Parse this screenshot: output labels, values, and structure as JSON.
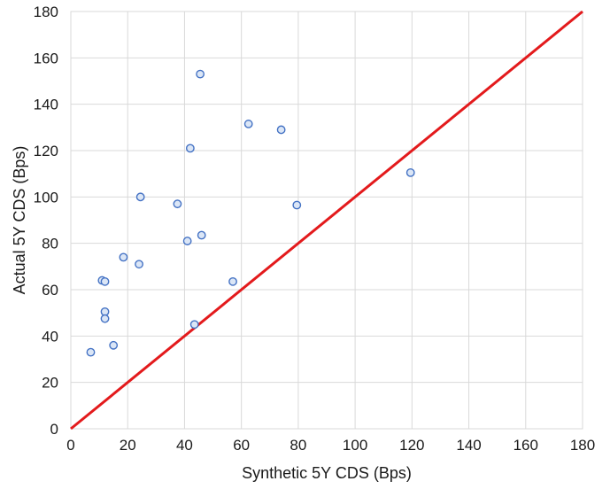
{
  "chart_data": {
    "type": "scatter",
    "title": "",
    "xlabel": "Synthetic 5Y CDS (Bps)",
    "ylabel": "Actual 5Y CDS (Bps)",
    "xlim": [
      0,
      180
    ],
    "ylim": [
      0,
      180
    ],
    "x_ticks": [
      0,
      20,
      40,
      60,
      80,
      100,
      120,
      140,
      160,
      180
    ],
    "y_ticks": [
      0,
      20,
      40,
      60,
      80,
      100,
      120,
      140,
      160,
      180
    ],
    "grid": true,
    "legend": "none",
    "reference_line": {
      "from": [
        0,
        0
      ],
      "to": [
        180,
        180
      ],
      "color": "#e31a1c"
    },
    "marker_color": "#4472c4",
    "points": [
      {
        "x": 7,
        "y": 33
      },
      {
        "x": 11,
        "y": 64
      },
      {
        "x": 12,
        "y": 63.5
      },
      {
        "x": 12,
        "y": 50.5
      },
      {
        "x": 12,
        "y": 47.5
      },
      {
        "x": 15,
        "y": 36
      },
      {
        "x": 18.5,
        "y": 74
      },
      {
        "x": 24,
        "y": 71
      },
      {
        "x": 24.5,
        "y": 100
      },
      {
        "x": 37.5,
        "y": 97
      },
      {
        "x": 41,
        "y": 81
      },
      {
        "x": 42,
        "y": 121
      },
      {
        "x": 43.5,
        "y": 45
      },
      {
        "x": 45.5,
        "y": 153
      },
      {
        "x": 46,
        "y": 83.5
      },
      {
        "x": 57,
        "y": 63.5
      },
      {
        "x": 62.5,
        "y": 131.5
      },
      {
        "x": 74,
        "y": 129
      },
      {
        "x": 79.5,
        "y": 96.5
      },
      {
        "x": 119.5,
        "y": 110.5
      }
    ]
  }
}
